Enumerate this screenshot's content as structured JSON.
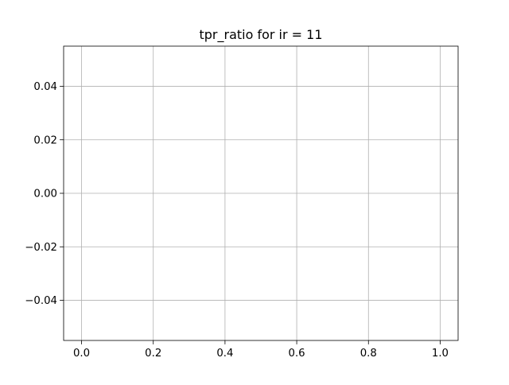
{
  "chart_data": {
    "type": "line",
    "title": "tpr_ratio for ir = 11",
    "xlabel": "",
    "ylabel": "",
    "xlim": [
      -0.05,
      1.05
    ],
    "ylim": [
      -0.055,
      0.055
    ],
    "x_ticks": [
      0.0,
      0.2,
      0.4,
      0.6,
      0.8,
      1.0
    ],
    "x_tick_labels": [
      "0.0",
      "0.2",
      "0.4",
      "0.6",
      "0.8",
      "1.0"
    ],
    "y_ticks": [
      -0.04,
      -0.02,
      0.0,
      0.02,
      0.04
    ],
    "y_tick_labels": [
      "−0.04",
      "−0.02",
      "0.00",
      "0.02",
      "0.04"
    ],
    "grid": true,
    "series": [],
    "colors": {
      "grid": "#b0b0b0",
      "axes": "#000000",
      "background": "#ffffff"
    }
  }
}
